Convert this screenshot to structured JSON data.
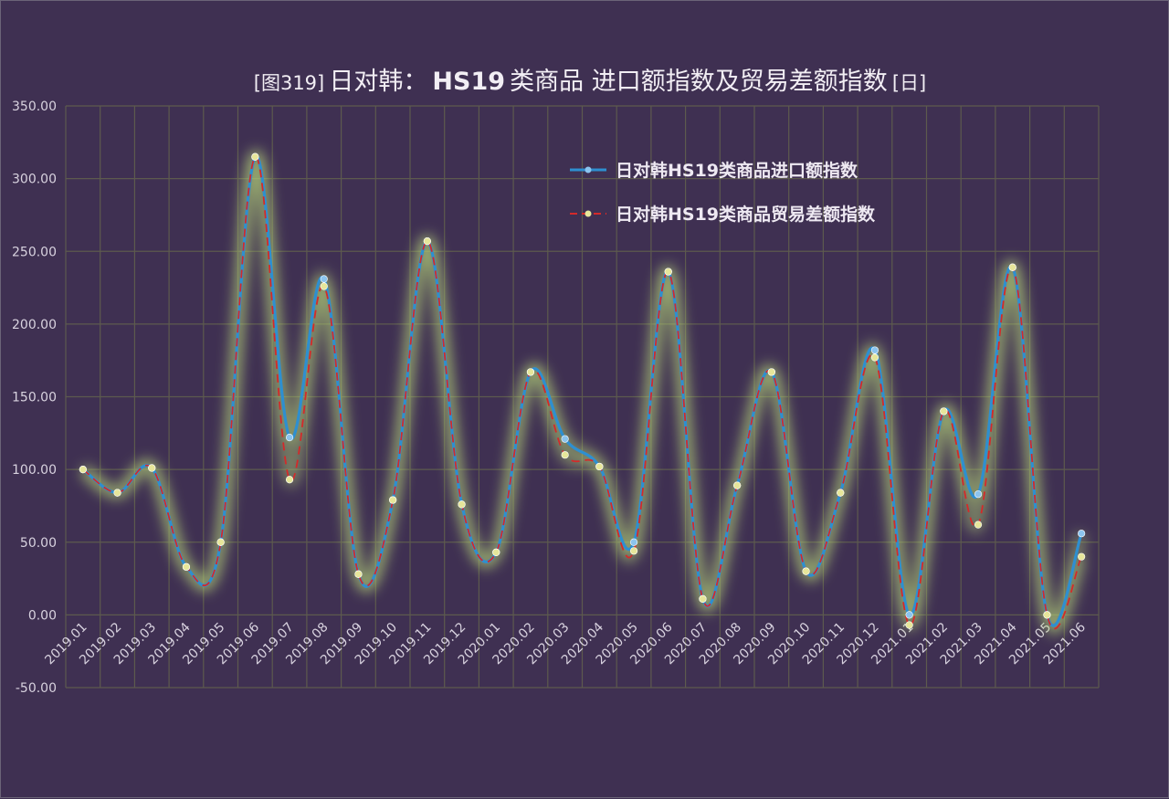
{
  "chart_data": {
    "type": "line",
    "title_prefix": "[图319]",
    "title_main": "日对韩：",
    "title_bold": "HS19",
    "title_rest": "类商品 进口额指数及贸易差额指数",
    "title_suffix": "[日]",
    "categories": [
      "2019.01",
      "2019.02",
      "2019.03",
      "2019.04",
      "2019.05",
      "2019.06",
      "2019.07",
      "2019.08",
      "2019.09",
      "2019.10",
      "2019.11",
      "2019.12",
      "2020.01",
      "2020.02",
      "2020.03",
      "2020.04",
      "2020.05",
      "2020.06",
      "2020.07",
      "2020.08",
      "2020.09",
      "2020.10",
      "2020.11",
      "2020.12",
      "2021.01",
      "2021.02",
      "2021.03",
      "2021.04",
      "2021.05",
      "2021.06"
    ],
    "y_ticks": [
      "350.00",
      "300.00",
      "250.00",
      "200.00",
      "150.00",
      "100.00",
      "50.00",
      "0.00",
      "-50.00"
    ],
    "ylim": [
      -50,
      350
    ],
    "grid": true,
    "legend_position": "top-right",
    "series": [
      {
        "name": "日对韩HS19类商品进口额指数",
        "color": "#2e8fd0",
        "marker_color": "#8cc4ee",
        "values": [
          100,
          84,
          101,
          33,
          50,
          315,
          122,
          231,
          28,
          79,
          257,
          76,
          43,
          167,
          121,
          102,
          50,
          236,
          11,
          89,
          167,
          30,
          84,
          182,
          0,
          140,
          83,
          239,
          0,
          56
        ]
      },
      {
        "name": "日对韩HS19类商品贸易差额指数",
        "color": "#d42a2a",
        "marker_color": "#e6e69a",
        "values": [
          100,
          84,
          101,
          33,
          50,
          315,
          93,
          226,
          28,
          79,
          257,
          76,
          43,
          167,
          110,
          102,
          44,
          236,
          11,
          89,
          167,
          30,
          84,
          177,
          -7,
          140,
          62,
          239,
          0,
          40
        ]
      }
    ]
  }
}
